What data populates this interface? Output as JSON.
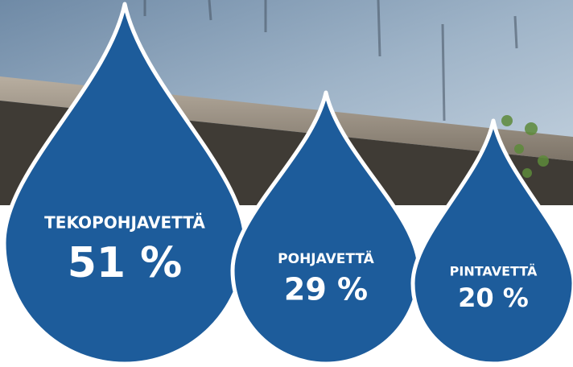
{
  "drops": [
    {
      "label": "TEKOPOHJAVETTÄ",
      "value": "51 %"
    },
    {
      "label": "POHJAVETTÄ",
      "value": "29 %"
    },
    {
      "label": "PINTAVETTÄ",
      "value": "20 %"
    }
  ]
}
